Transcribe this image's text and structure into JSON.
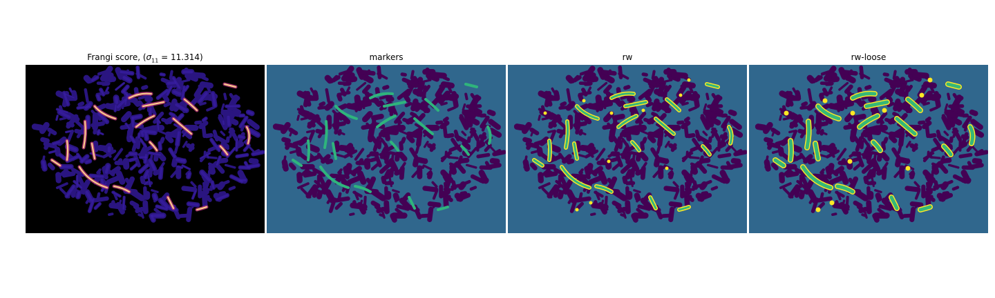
{
  "figure": {
    "panels": [
      {
        "title_text": "Frangi score, ",
        "title_math": "σ",
        "title_sub": "11",
        "title_value": " = 11.314",
        "colormap": "magma"
      },
      {
        "title": "markers",
        "colormap": "viridis"
      },
      {
        "title": "rw",
        "colormap": "viridis"
      },
      {
        "title": "rw-loose",
        "colormap": "viridis"
      }
    ]
  },
  "colors": {
    "frangi_background": "#000000",
    "frangi_blob": "#2a1580",
    "frangi_blob_edge": "#3b1fa8",
    "frangi_bright_low": "#b5367a",
    "frangi_bright_high": "#fcd38b",
    "label_background": "#30678d",
    "label_blob": "#440154",
    "label_marker": "#2fb47c",
    "label_vessel_core": "#35b779",
    "label_vessel_fill": "#fde725"
  }
}
